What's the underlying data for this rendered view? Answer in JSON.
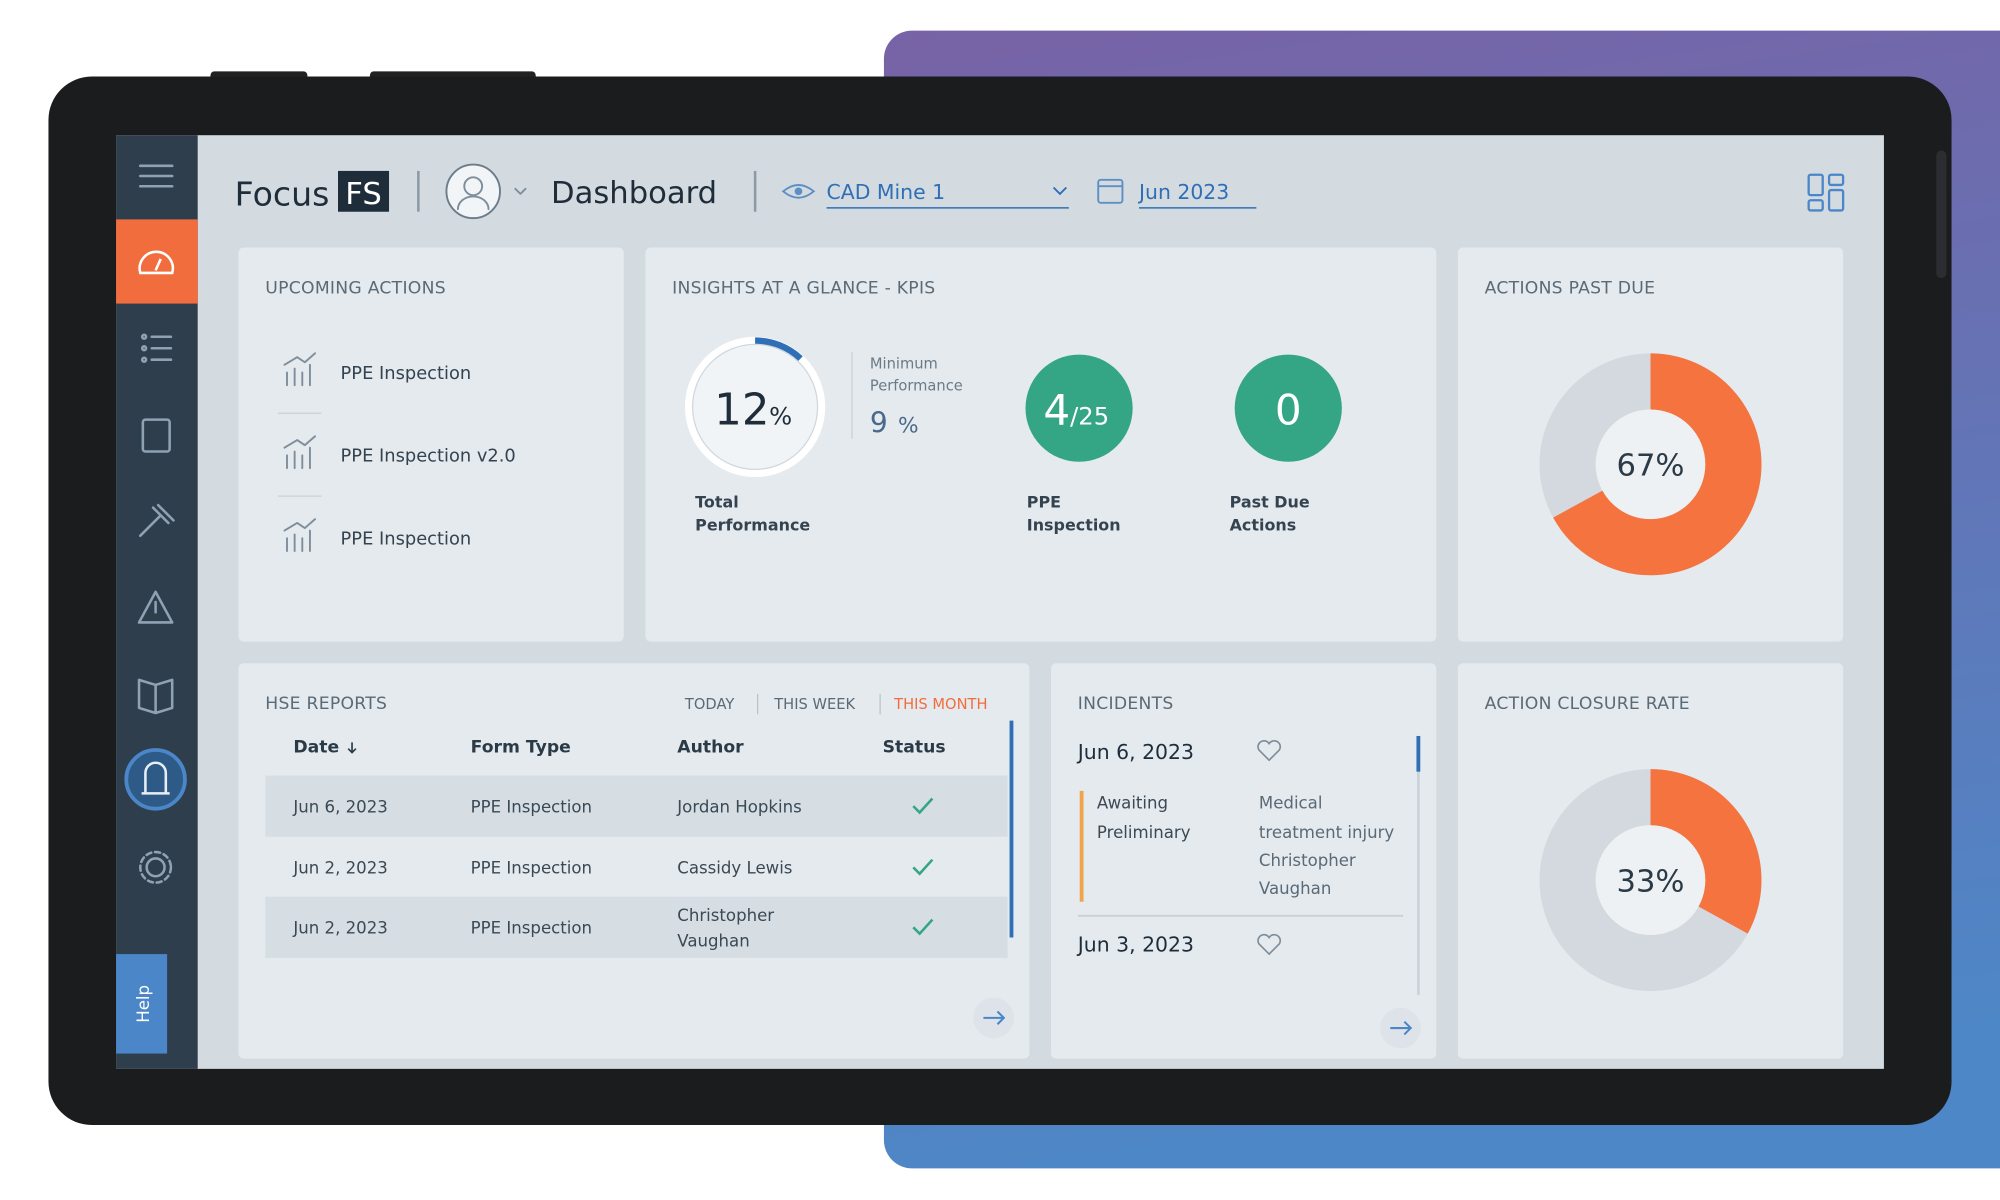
{
  "header": {
    "logo_text": "Focus",
    "logo_badge": "FS",
    "title": "Dashboard",
    "site": "CAD Mine 1",
    "period": "Jun 2023"
  },
  "sidebar": {
    "help": "Help"
  },
  "upcoming_actions": {
    "title": "UPCOMING ACTIONS",
    "items": [
      "PPE Inspection",
      "PPE Inspection v2.0",
      "PPE Inspection"
    ]
  },
  "insights": {
    "title": "INSIGHTS AT A GLANCE - KPIS",
    "total_performance": {
      "value": 12,
      "unit": "%",
      "label": [
        "Total",
        "Performance"
      ]
    },
    "minimum_performance": {
      "label": [
        "Minimum",
        "Performance"
      ],
      "value": 9,
      "unit": "%"
    },
    "ppe_inspection": {
      "value": 4,
      "total": "/25",
      "label": [
        "PPE",
        "Inspection"
      ]
    },
    "past_due_actions": {
      "value": 0,
      "label": [
        "Past Due",
        "Actions"
      ]
    }
  },
  "actions_past_due": {
    "title": "ACTIONS PAST DUE",
    "value": 67,
    "value_label": "67%"
  },
  "hse_reports": {
    "title": "HSE REPORTS",
    "filters": [
      "TODAY",
      "THIS WEEK",
      "THIS MONTH"
    ],
    "columns": [
      "Date",
      "Form Type",
      "Author",
      "Status"
    ],
    "rows": [
      {
        "date": "Jun 6, 2023",
        "form_type": "PPE Inspection",
        "author": [
          "Jordan Hopkins"
        ]
      },
      {
        "date": "Jun 2, 2023",
        "form_type": "PPE Inspection",
        "author": [
          "Cassidy Lewis"
        ]
      },
      {
        "date": "Jun 2, 2023",
        "form_type": "PPE Inspection",
        "author": [
          "Christopher",
          "Vaughan"
        ]
      }
    ]
  },
  "incidents": {
    "title": "INCIDENTS",
    "entries": [
      {
        "date": "Jun 6, 2023",
        "status": [
          "Awaiting",
          "Preliminary"
        ],
        "details": [
          "Medical",
          "treatment injury",
          "Christopher",
          "Vaughan"
        ]
      },
      {
        "date": "Jun 3, 2023"
      }
    ]
  },
  "action_closure_rate": {
    "title": "ACTION CLOSURE RATE",
    "value": 33,
    "value_label": "33%"
  }
}
